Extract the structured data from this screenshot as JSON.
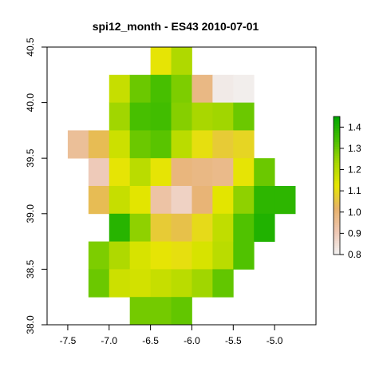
{
  "chart_data": {
    "type": "heatmap",
    "title": "spi12_month - ES43 2010-07-01",
    "xlabel": "",
    "ylabel": "",
    "xlim": [
      -7.75,
      -4.5
    ],
    "ylim": [
      38.0,
      40.5
    ],
    "grid": false,
    "x_ticks": [
      -7.5,
      -7.0,
      -6.5,
      -6.0,
      -5.5,
      -5.0
    ],
    "x_tick_labels": [
      "-7.5",
      "-7.0",
      "-6.5",
      "-6.0",
      "-5.5",
      "-5.0"
    ],
    "y_ticks": [
      38.0,
      38.5,
      39.0,
      39.5,
      40.0,
      40.5
    ],
    "y_tick_labels": [
      "38.0",
      "38.5",
      "39.0",
      "39.5",
      "40.0",
      "40.5"
    ],
    "cell_size": 0.25,
    "x_centers": [
      -7.375,
      -7.125,
      -6.875,
      -6.625,
      -6.375,
      -6.125,
      -5.875,
      -5.625,
      -5.375,
      -5.125,
      -4.875
    ],
    "y_centers": [
      40.375,
      40.125,
      39.875,
      39.625,
      39.375,
      39.125,
      38.875,
      38.625,
      38.375,
      38.125
    ],
    "values": [
      [
        null,
        null,
        null,
        null,
        1.12,
        1.22,
        null,
        null,
        null,
        null,
        null
      ],
      [
        null,
        null,
        1.18,
        1.3,
        1.34,
        1.28,
        0.98,
        0.82,
        0.81,
        null,
        null
      ],
      [
        null,
        null,
        1.24,
        1.34,
        1.35,
        1.27,
        1.23,
        1.24,
        1.3,
        null,
        null
      ],
      [
        0.95,
        1.04,
        1.17,
        1.3,
        1.32,
        1.2,
        1.11,
        1.07,
        1.09,
        null,
        null
      ],
      [
        null,
        0.9,
        1.12,
        1.2,
        1.12,
        0.99,
        0.98,
        0.97,
        1.12,
        1.3,
        null
      ],
      [
        null,
        1.04,
        1.18,
        1.13,
        0.93,
        0.88,
        1.0,
        1.13,
        1.26,
        1.38,
        1.38
      ],
      [
        null,
        null,
        1.39,
        1.26,
        1.07,
        1.05,
        1.1,
        1.19,
        1.33,
        1.4,
        null
      ],
      [
        null,
        1.28,
        1.22,
        1.15,
        1.12,
        1.11,
        1.15,
        1.2,
        1.33,
        null,
        null
      ],
      [
        null,
        1.3,
        1.17,
        1.16,
        1.18,
        1.2,
        1.24,
        1.31,
        null,
        null,
        null
      ],
      [
        null,
        null,
        null,
        1.29,
        1.29,
        1.31,
        null,
        null,
        null,
        null,
        null
      ]
    ],
    "colorbar": {
      "min": 0.8,
      "max": 1.45,
      "ticks": [
        0.8,
        0.9,
        1.0,
        1.1,
        1.2,
        1.3,
        1.4
      ],
      "tick_labels": [
        "0.8",
        "0.9",
        "1.0",
        "1.1",
        "1.2",
        "1.3",
        "1.4"
      ],
      "colors": [
        "#f2f2f2",
        "#eec7b4",
        "#e7b16b",
        "#e6e600",
        "#a7d700",
        "#46bf00",
        "#00a600"
      ]
    }
  }
}
